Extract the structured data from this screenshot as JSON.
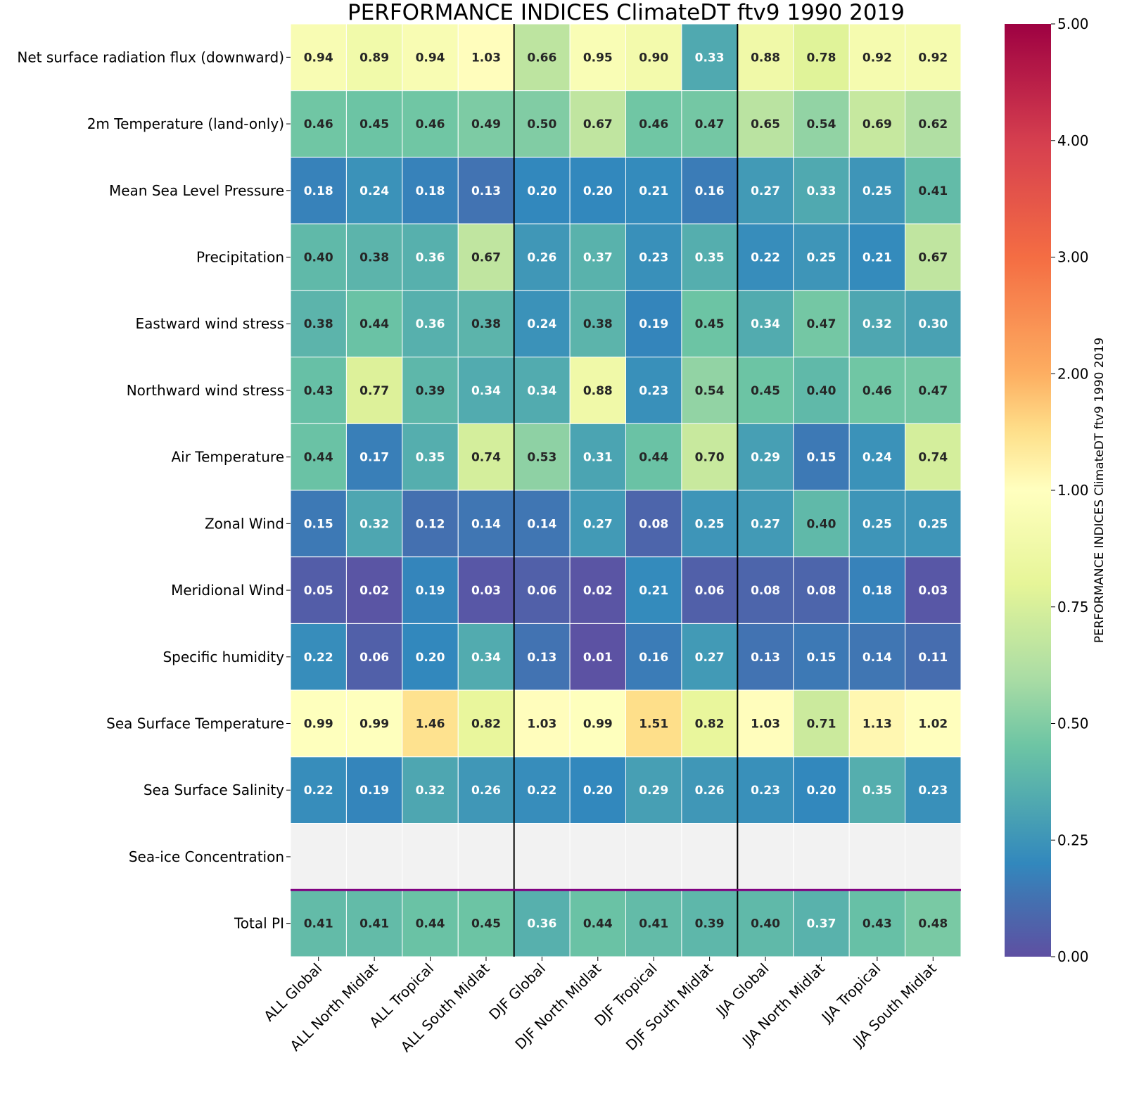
{
  "chart_data": {
    "type": "heatmap",
    "title": "PERFORMANCE INDICES ClimateDT ftv9 1990 2019",
    "colorbar_label": "PERFORMANCE INDICES ClimateDT ftv9 1990 2019",
    "colorbar_ticks": [
      "0.00",
      "0.25",
      "0.50",
      "0.75",
      "1.00",
      "2.00",
      "3.00",
      "4.00",
      "5.00"
    ],
    "colorbar_range": [
      0,
      5
    ],
    "colorbar_center": 1.0,
    "colormap": "Spectral_r",
    "columns": [
      "ALL Global",
      "ALL North Midlat",
      "ALL Tropical",
      "ALL South Midlat",
      "DJF Global",
      "DJF North Midlat",
      "DJF Tropical",
      "DJF South Midlat",
      "JJA Global",
      "JJA North Midlat",
      "JJA Tropical",
      "JJA South Midlat"
    ],
    "rows": [
      "Net surface radiation flux (downward)",
      "2m Temperature (land-only)",
      "Mean Sea Level Pressure",
      "Precipitation",
      "Eastward wind stress",
      "Northward wind stress",
      "Air Temperature",
      "Zonal Wind",
      "Meridional Wind",
      "Specific humidity",
      "Sea Surface Temperature",
      "Sea Surface Salinity",
      "Sea-ice Concentration",
      "Total PI"
    ],
    "values": [
      [
        0.94,
        0.89,
        0.94,
        1.03,
        0.66,
        0.95,
        0.9,
        0.33,
        0.88,
        0.78,
        0.92,
        0.92
      ],
      [
        0.46,
        0.45,
        0.46,
        0.49,
        0.5,
        0.67,
        0.46,
        0.47,
        0.65,
        0.54,
        0.69,
        0.62
      ],
      [
        0.18,
        0.24,
        0.18,
        0.13,
        0.2,
        0.2,
        0.21,
        0.16,
        0.27,
        0.33,
        0.25,
        0.41
      ],
      [
        0.4,
        0.38,
        0.36,
        0.67,
        0.26,
        0.37,
        0.23,
        0.35,
        0.22,
        0.25,
        0.21,
        0.67
      ],
      [
        0.38,
        0.44,
        0.36,
        0.38,
        0.24,
        0.38,
        0.19,
        0.45,
        0.34,
        0.47,
        0.32,
        0.3
      ],
      [
        0.43,
        0.77,
        0.39,
        0.34,
        0.34,
        0.88,
        0.23,
        0.54,
        0.45,
        0.4,
        0.46,
        0.47
      ],
      [
        0.44,
        0.17,
        0.35,
        0.74,
        0.53,
        0.31,
        0.44,
        0.7,
        0.29,
        0.15,
        0.24,
        0.74
      ],
      [
        0.15,
        0.32,
        0.12,
        0.14,
        0.14,
        0.27,
        0.08,
        0.25,
        0.27,
        0.4,
        0.25,
        0.25
      ],
      [
        0.05,
        0.02,
        0.19,
        0.03,
        0.06,
        0.02,
        0.21,
        0.06,
        0.08,
        0.08,
        0.18,
        0.03
      ],
      [
        0.22,
        0.06,
        0.2,
        0.34,
        0.13,
        0.01,
        0.16,
        0.27,
        0.13,
        0.15,
        0.14,
        0.11
      ],
      [
        0.99,
        0.99,
        1.46,
        0.82,
        1.03,
        0.99,
        1.51,
        0.82,
        1.03,
        0.71,
        1.13,
        1.02
      ],
      [
        0.22,
        0.19,
        0.32,
        0.26,
        0.22,
        0.2,
        0.29,
        0.26,
        0.23,
        0.2,
        0.35,
        0.23
      ],
      [
        null,
        null,
        null,
        null,
        null,
        null,
        null,
        null,
        null,
        null,
        null,
        null
      ],
      [
        0.41,
        0.41,
        0.44,
        0.45,
        0.36,
        0.44,
        0.41,
        0.39,
        0.4,
        0.37,
        0.43,
        0.48
      ]
    ],
    "separator_color": "#800080",
    "missing_color": "#f2f2f2"
  }
}
